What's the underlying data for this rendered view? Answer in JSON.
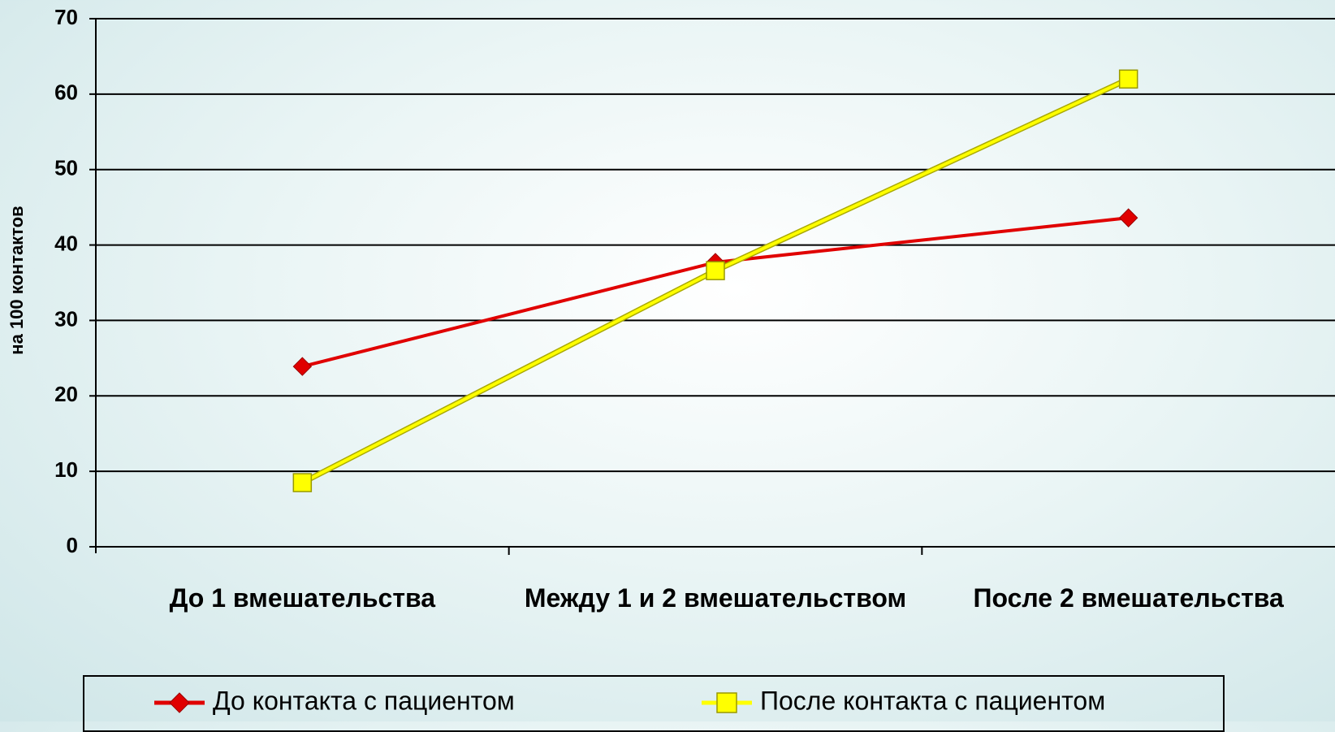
{
  "chart_data": {
    "type": "line",
    "y_label": "на 100 контактов",
    "categories": [
      "До 1 вмешательства",
      "Между 1 и 2 вмешательством",
      "После 2 вмешательства"
    ],
    "series": [
      {
        "name": "До контакта с пациентом",
        "color": "#e00000",
        "marker": "diamond",
        "values": [
          23.9,
          37.7,
          43.6
        ]
      },
      {
        "name": "После контакта с пациентом",
        "color": "#ffff00",
        "marker": "square",
        "values": [
          8.5,
          36.6,
          62.0
        ]
      }
    ],
    "ylim": [
      0,
      70
    ],
    "yticks": [
      0,
      10,
      20,
      30,
      40,
      50,
      60,
      70
    ],
    "grid": true
  }
}
